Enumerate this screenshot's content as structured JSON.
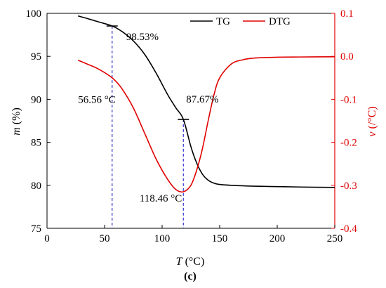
{
  "chart_data": {
    "type": "line",
    "x_axis": {
      "label_italic": "T",
      "label_rest": " (°C)",
      "range": [
        0,
        250
      ],
      "ticks": [
        0,
        50,
        100,
        150,
        200,
        250
      ]
    },
    "y_left": {
      "label_italic": "m",
      "label_rest": " (%)",
      "range": [
        75,
        100
      ],
      "ticks": [
        75,
        80,
        85,
        90,
        95,
        100
      ],
      "color": "#000000"
    },
    "y_right": {
      "label_italic": "v",
      "label_rest": " (/°C)",
      "range": [
        -0.4,
        0.1
      ],
      "ticks": [
        "-0.4",
        "-0.3",
        "-0.2",
        "-0.1",
        "0.0",
        "0.1"
      ],
      "tick_values": [
        -0.4,
        -0.3,
        -0.2,
        -0.1,
        0.0,
        0.1
      ],
      "color": "#e00000"
    },
    "series": [
      {
        "name": "TG",
        "axis": "left",
        "color": "#000000",
        "x": [
          27,
          35,
          45,
          56.56,
          65,
          75,
          85,
          95,
          105,
          112,
          118.46,
          125,
          130,
          135,
          140,
          145,
          150,
          160,
          180,
          200,
          220,
          250
        ],
        "y": [
          99.7,
          99.4,
          99.0,
          98.53,
          97.9,
          96.8,
          95.2,
          93.0,
          90.5,
          89.0,
          87.67,
          84.5,
          82.6,
          81.3,
          80.6,
          80.25,
          80.1,
          80.0,
          79.9,
          79.85,
          79.8,
          79.75
        ]
      },
      {
        "name": "DTG",
        "axis": "right",
        "color": "#e00000",
        "x": [
          27,
          35,
          45,
          56.56,
          65,
          75,
          85,
          95,
          105,
          112,
          118.46,
          125,
          130,
          135,
          140,
          145,
          150,
          160,
          170,
          180,
          200,
          220,
          250
        ],
        "y": [
          -0.009,
          -0.018,
          -0.03,
          -0.05,
          -0.075,
          -0.12,
          -0.18,
          -0.24,
          -0.287,
          -0.31,
          -0.315,
          -0.3,
          -0.265,
          -0.215,
          -0.15,
          -0.09,
          -0.05,
          -0.018,
          -0.008,
          -0.004,
          -0.002,
          -0.0015,
          -0.001
        ]
      }
    ],
    "annotations": [
      {
        "text": "98.53%",
        "x": 56.56,
        "y_left": 98.53
      },
      {
        "text": "87.67%",
        "x": 118.46,
        "y_left": 87.67
      },
      {
        "text": "56.56 °C",
        "x": 56.56
      },
      {
        "text": "118.46 °C",
        "x": 118.46
      }
    ],
    "vertical_markers": [
      56.56,
      118.46
    ],
    "marker_color": "#3333cc",
    "legend": {
      "placement": "top-right",
      "items": [
        "TG",
        "DTG"
      ]
    },
    "grid": false
  },
  "caption": "(c)"
}
